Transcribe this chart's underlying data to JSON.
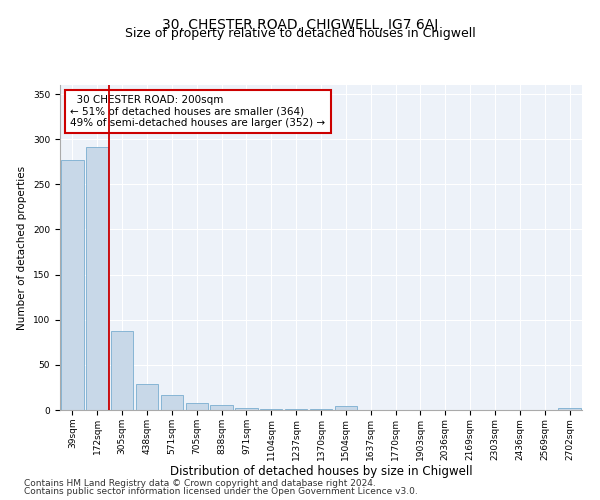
{
  "title": "30, CHESTER ROAD, CHIGWELL, IG7 6AJ",
  "subtitle": "Size of property relative to detached houses in Chigwell",
  "xlabel": "Distribution of detached houses by size in Chigwell",
  "ylabel": "Number of detached properties",
  "categories": [
    "39sqm",
    "172sqm",
    "305sqm",
    "438sqm",
    "571sqm",
    "705sqm",
    "838sqm",
    "971sqm",
    "1104sqm",
    "1237sqm",
    "1370sqm",
    "1504sqm",
    "1637sqm",
    "1770sqm",
    "1903sqm",
    "2036sqm",
    "2169sqm",
    "2303sqm",
    "2436sqm",
    "2569sqm",
    "2702sqm"
  ],
  "values": [
    277,
    291,
    88,
    29,
    17,
    8,
    6,
    2,
    1,
    1,
    1,
    4,
    0,
    0,
    0,
    0,
    0,
    0,
    0,
    0,
    2
  ],
  "bar_color": "#c8d8e8",
  "bar_edgecolor": "#7aaed0",
  "highlight_line_color": "#cc0000",
  "annotation_line1": "  30 CHESTER ROAD: 200sqm",
  "annotation_line2": "← 51% of detached houses are smaller (364)",
  "annotation_line3": "49% of semi-detached houses are larger (352) →",
  "annotation_box_edgecolor": "#cc0000",
  "annotation_box_facecolor": "#ffffff",
  "ylim": [
    0,
    360
  ],
  "yticks": [
    0,
    50,
    100,
    150,
    200,
    250,
    300,
    350
  ],
  "background_color": "#edf2f9",
  "grid_color": "#ffffff",
  "footer_line1": "Contains HM Land Registry data © Crown copyright and database right 2024.",
  "footer_line2": "Contains public sector information licensed under the Open Government Licence v3.0.",
  "title_fontsize": 10,
  "subtitle_fontsize": 9,
  "xlabel_fontsize": 8.5,
  "ylabel_fontsize": 7.5,
  "tick_fontsize": 6.5,
  "annotation_fontsize": 7.5,
  "footer_fontsize": 6.5
}
